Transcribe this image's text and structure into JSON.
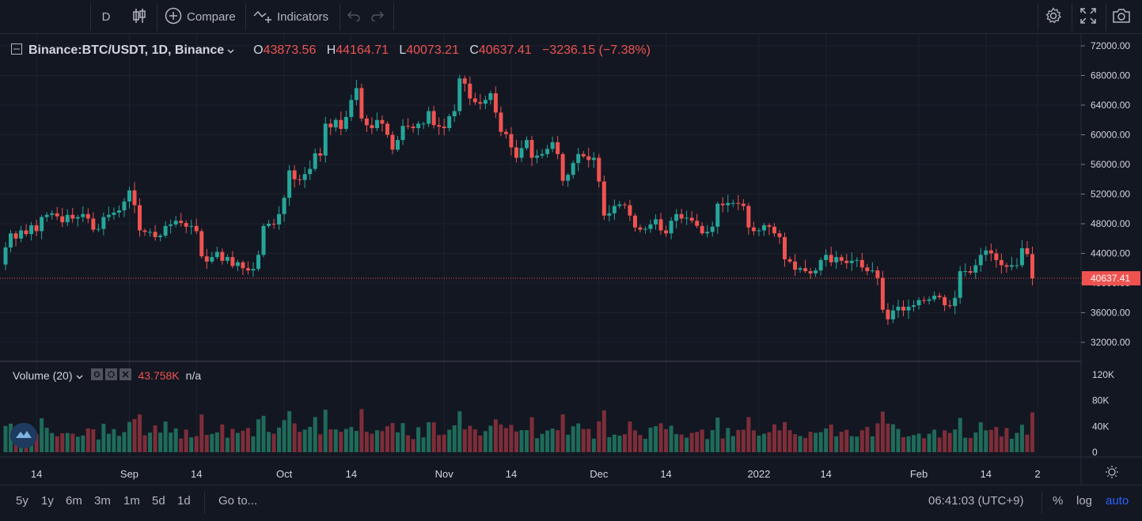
{
  "toolbar": {
    "interval": "D",
    "compare_label": "Compare",
    "indicators_label": "Indicators"
  },
  "legend": {
    "symbol": "Binance:BTC/USDT, 1D, Binance",
    "o_label": "O",
    "o": "43873.56",
    "h_label": "H",
    "h": "44164.71",
    "l_label": "L",
    "l": "40073.21",
    "c_label": "C",
    "c": "40637.41",
    "change": "−3236.15 (−7.38%)"
  },
  "volume_legend": {
    "label": "Volume (20)",
    "value": "43.758K",
    "na": "n/a"
  },
  "bottom": {
    "ranges": [
      "5y",
      "1y",
      "6m",
      "3m",
      "1m",
      "5d",
      "1d"
    ],
    "goto": "Go to...",
    "time": "06:41:03 (UTC+9)",
    "percent": "%",
    "log": "log",
    "auto": "auto"
  },
  "colors": {
    "up": "#26a69a",
    "down": "#ef5350",
    "up_vol": "#1f6b5a",
    "down_vol": "#7d2e39",
    "bg": "#131722",
    "grid": "#1e222d"
  },
  "chart_data": {
    "type": "candlestick",
    "price_axis_ticks": [
      72000,
      68000,
      64000,
      60000,
      56000,
      52000,
      48000,
      44000,
      40000,
      36000,
      32000
    ],
    "price_axis_labels": [
      "72000.00",
      "68000.00",
      "64000.00",
      "60000.00",
      "56000.00",
      "52000.00",
      "48000.00",
      "44000.00",
      "40000.00",
      "36000.00",
      "32000.00"
    ],
    "last_price": 40637.41,
    "last_price_label": "40637.41",
    "volume_axis_ticks": [
      120000,
      80000,
      40000,
      0
    ],
    "volume_axis_labels": [
      "120K",
      "80K",
      "40K",
      "0"
    ],
    "x_ticks": [
      {
        "label": "14",
        "day": 6
      },
      {
        "label": "Sep",
        "day": 24
      },
      {
        "label": "14",
        "day": 37
      },
      {
        "label": "Oct",
        "day": 54
      },
      {
        "label": "14",
        "day": 67
      },
      {
        "label": "Nov",
        "day": 85
      },
      {
        "label": "14",
        "day": 98
      },
      {
        "label": "Dec",
        "day": 115
      },
      {
        "label": "14",
        "day": 128
      },
      {
        "label": "2022",
        "day": 146
      },
      {
        "label": "14",
        "day": 159
      },
      {
        "label": "Feb",
        "day": 177
      },
      {
        "label": "14",
        "day": 190
      },
      {
        "label": "2",
        "day": 200
      }
    ],
    "close": [
      44800,
      46700,
      46000,
      47100,
      46600,
      47800,
      47000,
      48900,
      49200,
      49400,
      49000,
      48200,
      49200,
      48700,
      48900,
      49300,
      48700,
      47200,
      47300,
      48900,
      49200,
      49500,
      49800,
      51000,
      52500,
      50500,
      47100,
      46900,
      46900,
      46200,
      46400,
      47700,
      47900,
      48400,
      48100,
      47600,
      47700,
      47000,
      43600,
      42900,
      43500,
      44200,
      43000,
      43500,
      42300,
      42800,
      42000,
      41700,
      41900,
      43800,
      47700,
      48000,
      47900,
      49300,
      51500,
      55200,
      54000,
      53900,
      54700,
      55400,
      57500,
      57200,
      61500,
      61000,
      62000,
      60800,
      62400,
      64700,
      66300,
      62200,
      61300,
      60900,
      62000,
      61500,
      60000,
      58000,
      59300,
      61200,
      61100,
      60900,
      61500,
      61500,
      63200,
      61300,
      61100,
      60900,
      62500,
      63200,
      67600,
      66900,
      64900,
      64400,
      64200,
      64700,
      65600,
      63000,
      60400,
      60100,
      58300,
      56900,
      58200,
      59300,
      56900,
      57200,
      57400,
      58100,
      59000,
      57400,
      53800,
      54600,
      56200,
      57400,
      57100,
      56600,
      56900,
      53700,
      49100,
      49400,
      50400,
      50600,
      50500,
      49100,
      47500,
      47200,
      47300,
      47900,
      48600,
      47100,
      46700,
      48400,
      49300,
      48700,
      48800,
      48400,
      47700,
      46700,
      46900,
      47600,
      50700,
      50500,
      50800,
      50800,
      50700,
      50400,
      47500,
      47000,
      47100,
      47800,
      47600,
      46700,
      46200,
      43200,
      42900,
      41800,
      42000,
      41600,
      41300,
      41700,
      43100,
      43800,
      42800,
      43500,
      43000,
      42700,
      43000,
      43100,
      42100,
      41600,
      41700,
      40700,
      36400,
      35100,
      36300,
      36800,
      36300,
      36800,
      37000,
      37700,
      37600,
      37800,
      38300,
      38100,
      37000,
      36900,
      38000,
      41600,
      41600,
      41400,
      42400,
      43800,
      44400,
      44000,
      43100,
      42400,
      42200,
      42400,
      42400,
      44700,
      43900,
      40637
    ]
  }
}
